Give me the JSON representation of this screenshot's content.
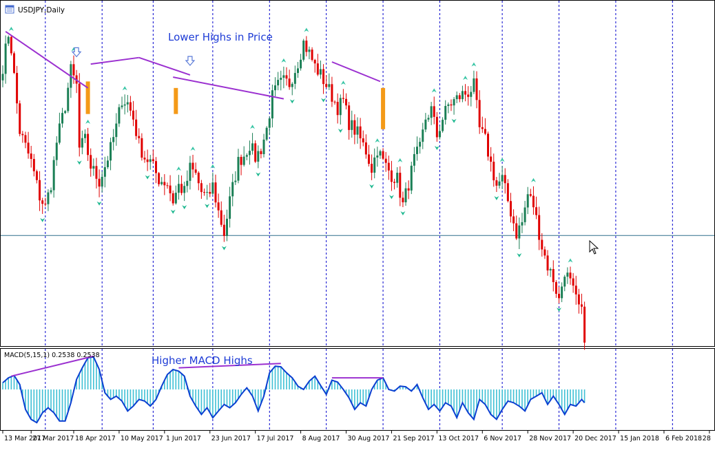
{
  "colors": {
    "background": "#ffffff",
    "frame": "#000000",
    "grid": "#0000cc",
    "bull": "#1a7f55",
    "bear": "#e00000",
    "fractal_up": "#38c5a5",
    "fractal_down": "#1fb890",
    "trendline": "#9b30d0",
    "annotation_text": "#1e3cd6",
    "macd_line": "#0b3fd1",
    "macd_hist": "#3dbfd4",
    "signal_box": "#f49a18",
    "hline": "#2e6e8a",
    "header_text": "#000000",
    "icon_fill": "#5a7ad8"
  },
  "header": {
    "symbol_label": "USDJPY,Daily"
  },
  "macd_panel": {
    "label": "MACD(5,15,1) 0.2538 0.2538"
  },
  "annotations": {
    "price_note": "Lower Highs in Price",
    "macd_note": "Higher MACD Highs"
  },
  "chart_data": [
    {
      "type": "candlestick",
      "title": "USDJPY,Daily",
      "xlabel": "",
      "ylabel": "",
      "price_scale_note": "no price axis printed",
      "session_range": [
        0,
        226
      ],
      "ylim": [
        103.2,
        118.8
      ],
      "horizontal_line": 108.2,
      "x_ticks": [
        {
          "label": "13 Mar 2017",
          "session": 0
        },
        {
          "label": "27 Mar 2017",
          "session": 10
        },
        {
          "label": "18 Apr 2017",
          "session": 25
        },
        {
          "label": "10 May 2017",
          "session": 41
        },
        {
          "label": "1 Jun 2017",
          "session": 57
        },
        {
          "label": "23 Jun 2017",
          "session": 73
        },
        {
          "label": "17 Jul 2017",
          "session": 89
        },
        {
          "label": "8 Aug 2017",
          "session": 105
        },
        {
          "label": "30 Aug 2017",
          "session": 121
        },
        {
          "label": "21 Sep 2017",
          "session": 137
        },
        {
          "label": "13 Oct 2017",
          "session": 153
        },
        {
          "label": "6 Nov 2017",
          "session": 169
        },
        {
          "label": "28 Nov 2017",
          "session": 185
        },
        {
          "label": "20 Dec 2017",
          "session": 201
        },
        {
          "label": "15 Jan 2018",
          "session": 217
        },
        {
          "label": "6 Feb 2018",
          "session": 233
        },
        {
          "label": "28",
          "session": 249
        }
      ],
      "grid_sessions": [
        15,
        35,
        53,
        74,
        94,
        114,
        134,
        154,
        176,
        196,
        216,
        236
      ],
      "waypoints": [
        [
          0,
          116.0
        ],
        [
          2,
          117.5
        ],
        [
          3,
          116.8
        ],
        [
          6,
          113.0
        ],
        [
          10,
          111.6
        ],
        [
          13,
          110.0
        ],
        [
          15,
          109.5
        ],
        [
          17,
          110.6
        ],
        [
          19,
          112.5
        ],
        [
          22,
          114.2
        ],
        [
          24,
          115.8
        ],
        [
          26,
          115.1
        ],
        [
          27,
          112.2
        ],
        [
          29,
          112.6
        ],
        [
          31,
          111.4
        ],
        [
          34,
          110.7
        ],
        [
          36,
          111.4
        ],
        [
          38,
          112.2
        ],
        [
          40,
          113.2
        ],
        [
          42,
          114.5
        ],
        [
          44,
          114.3
        ],
        [
          46,
          113.6
        ],
        [
          48,
          112.4
        ],
        [
          50,
          111.8
        ],
        [
          52,
          111.6
        ],
        [
          55,
          110.8
        ],
        [
          58,
          110.6
        ],
        [
          60,
          109.8
        ],
        [
          62,
          110.5
        ],
        [
          64,
          110.2
        ],
        [
          66,
          111.3
        ],
        [
          68,
          111.0
        ],
        [
          70,
          110.2
        ],
        [
          72,
          109.9
        ],
        [
          74,
          110.5
        ],
        [
          76,
          109.3
        ],
        [
          78,
          108.3
        ],
        [
          80,
          109.8
        ],
        [
          83,
          111.6
        ],
        [
          85,
          111.9
        ],
        [
          87,
          112.4
        ],
        [
          89,
          111.8
        ],
        [
          91,
          112.2
        ],
        [
          93,
          113.1
        ],
        [
          95,
          114.6
        ],
        [
          97,
          115.1
        ],
        [
          99,
          115.3
        ],
        [
          101,
          115.2
        ],
        [
          104,
          116.2
        ],
        [
          106,
          117.1
        ],
        [
          108,
          116.6
        ],
        [
          110,
          116.0
        ],
        [
          112,
          115.6
        ],
        [
          115,
          114.9
        ],
        [
          118,
          114.1
        ],
        [
          120,
          114.4
        ],
        [
          122,
          113.4
        ],
        [
          125,
          112.9
        ],
        [
          128,
          112.1
        ],
        [
          130,
          111.3
        ],
        [
          132,
          112.2
        ],
        [
          134,
          111.6
        ],
        [
          137,
          111.0
        ],
        [
          139,
          110.8
        ],
        [
          141,
          109.6
        ],
        [
          143,
          110.6
        ],
        [
          145,
          111.7
        ],
        [
          147,
          112.2
        ],
        [
          149,
          113.6
        ],
        [
          151,
          114.0
        ],
        [
          153,
          112.8
        ],
        [
          155,
          113.6
        ],
        [
          157,
          114.2
        ],
        [
          160,
          114.5
        ],
        [
          162,
          114.7
        ],
        [
          164,
          114.8
        ],
        [
          166,
          115.1
        ],
        [
          168,
          113.1
        ],
        [
          170,
          112.6
        ],
        [
          172,
          111.5
        ],
        [
          174,
          110.5
        ],
        [
          176,
          110.8
        ],
        [
          178,
          109.8
        ],
        [
          181,
          108.3
        ],
        [
          183,
          108.8
        ],
        [
          185,
          110.1
        ],
        [
          187,
          109.6
        ],
        [
          190,
          107.7
        ],
        [
          192,
          106.8
        ],
        [
          194,
          106.2
        ],
        [
          196,
          105.2
        ],
        [
          198,
          106.6
        ],
        [
          200,
          106.0
        ],
        [
          202,
          105.2
        ],
        [
          204,
          104.6
        ],
        [
          205,
          103.6
        ]
      ],
      "candle_mapping": "session index 0-205 = chart sessions 0-205; sessions 206-225 continue the waypoint trend",
      "series": [
        {
          "name": "",
          "kind": "ohlc",
          "source": "waypoints"
        },
        {
          "name": "",
          "kind": "fractals"
        }
      ],
      "trendlines": [
        {
          "from": [
            1,
            117.6
          ],
          "to": [
            30,
            115.0
          ]
        },
        {
          "from": [
            31,
            116.1
          ],
          "to": [
            48,
            116.4
          ]
        },
        {
          "from": [
            48,
            116.4
          ],
          "to": [
            66,
            115.6
          ]
        },
        {
          "from": [
            60,
            115.5
          ],
          "to": [
            99,
            114.5
          ]
        },
        {
          "from": [
            116,
            116.2
          ],
          "to": [
            133,
            115.3
          ]
        }
      ],
      "signal_arrows": [
        {
          "session": 26,
          "price": 116.6
        },
        {
          "session": 66,
          "price": 116.2
        }
      ],
      "signal_boxes": [
        {
          "session": 30,
          "high": 115.3,
          "low": 113.8
        },
        {
          "session": 61,
          "high": 115.0,
          "low": 113.8
        },
        {
          "session": 134,
          "high": 115.0,
          "low": 113.1
        }
      ]
    },
    {
      "type": "area",
      "title": "MACD(5,15,1) 0.2538 0.2538",
      "xlabel": "",
      "ylabel": "",
      "session_range": [
        0,
        226
      ],
      "ylim": [
        -1.2,
        1.2
      ],
      "zero_line": 0,
      "values_by_session": [
        [
          0,
          0.2
        ],
        [
          2,
          0.35
        ],
        [
          4,
          0.42
        ],
        [
          6,
          0.15
        ],
        [
          8,
          -0.6
        ],
        [
          10,
          -0.9
        ],
        [
          12,
          -1.0
        ],
        [
          14,
          -0.7
        ],
        [
          16,
          -0.55
        ],
        [
          18,
          -0.7
        ],
        [
          20,
          -0.95
        ],
        [
          22,
          -0.95
        ],
        [
          24,
          -0.4
        ],
        [
          26,
          0.3
        ],
        [
          28,
          0.65
        ],
        [
          30,
          0.95
        ],
        [
          32,
          0.98
        ],
        [
          34,
          0.6
        ],
        [
          36,
          -0.1
        ],
        [
          38,
          -0.3
        ],
        [
          40,
          -0.2
        ],
        [
          42,
          -0.35
        ],
        [
          44,
          -0.65
        ],
        [
          46,
          -0.5
        ],
        [
          48,
          -0.3
        ],
        [
          50,
          -0.35
        ],
        [
          52,
          -0.5
        ],
        [
          54,
          -0.3
        ],
        [
          56,
          0.1
        ],
        [
          58,
          0.45
        ],
        [
          60,
          0.6
        ],
        [
          62,
          0.55
        ],
        [
          64,
          0.4
        ],
        [
          66,
          -0.2
        ],
        [
          68,
          -0.5
        ],
        [
          70,
          -0.75
        ],
        [
          72,
          -0.55
        ],
        [
          74,
          -0.85
        ],
        [
          76,
          -0.65
        ],
        [
          78,
          -0.45
        ],
        [
          80,
          -0.55
        ],
        [
          82,
          -0.4
        ],
        [
          84,
          -0.15
        ],
        [
          86,
          0.05
        ],
        [
          88,
          -0.2
        ],
        [
          90,
          -0.65
        ],
        [
          92,
          -0.2
        ],
        [
          94,
          0.5
        ],
        [
          96,
          0.7
        ],
        [
          98,
          0.68
        ],
        [
          100,
          0.5
        ],
        [
          102,
          0.35
        ],
        [
          104,
          0.1
        ],
        [
          106,
          0.0
        ],
        [
          108,
          0.25
        ],
        [
          110,
          0.4
        ],
        [
          112,
          0.12
        ],
        [
          114,
          -0.15
        ],
        [
          116,
          0.28
        ],
        [
          118,
          0.22
        ],
        [
          120,
          0.0
        ],
        [
          122,
          -0.25
        ],
        [
          124,
          -0.6
        ],
        [
          126,
          -0.4
        ],
        [
          128,
          -0.5
        ],
        [
          130,
          0.0
        ],
        [
          132,
          0.28
        ],
        [
          134,
          0.35
        ],
        [
          136,
          0.0
        ],
        [
          138,
          -0.05
        ],
        [
          140,
          0.1
        ],
        [
          142,
          0.08
        ],
        [
          144,
          -0.05
        ],
        [
          146,
          0.15
        ],
        [
          148,
          -0.25
        ],
        [
          150,
          -0.6
        ],
        [
          152,
          -0.45
        ],
        [
          154,
          -0.65
        ],
        [
          156,
          -0.4
        ],
        [
          158,
          -0.5
        ],
        [
          160,
          -0.85
        ],
        [
          162,
          -0.4
        ],
        [
          164,
          -0.7
        ],
        [
          166,
          -0.9
        ],
        [
          168,
          -0.3
        ],
        [
          170,
          -0.45
        ],
        [
          172,
          -0.75
        ],
        [
          174,
          -0.9
        ],
        [
          176,
          -0.6
        ],
        [
          178,
          -0.35
        ],
        [
          180,
          -0.4
        ],
        [
          182,
          -0.5
        ],
        [
          184,
          -0.65
        ],
        [
          186,
          -0.3
        ],
        [
          188,
          -0.2
        ],
        [
          190,
          -0.1
        ],
        [
          192,
          -0.45
        ],
        [
          194,
          -0.2
        ],
        [
          196,
          -0.45
        ],
        [
          198,
          -0.75
        ],
        [
          200,
          -0.45
        ],
        [
          202,
          -0.5
        ],
        [
          204,
          -0.3
        ],
        [
          205,
          -0.4
        ]
      ],
      "trendlines": [
        {
          "from": [
            3,
            0.4
          ],
          "to": [
            32,
            1.0
          ]
        },
        {
          "from": [
            62,
            0.65
          ],
          "to": [
            98,
            0.78
          ]
        },
        {
          "from": [
            116,
            0.35
          ],
          "to": [
            134,
            0.35
          ]
        }
      ]
    }
  ]
}
